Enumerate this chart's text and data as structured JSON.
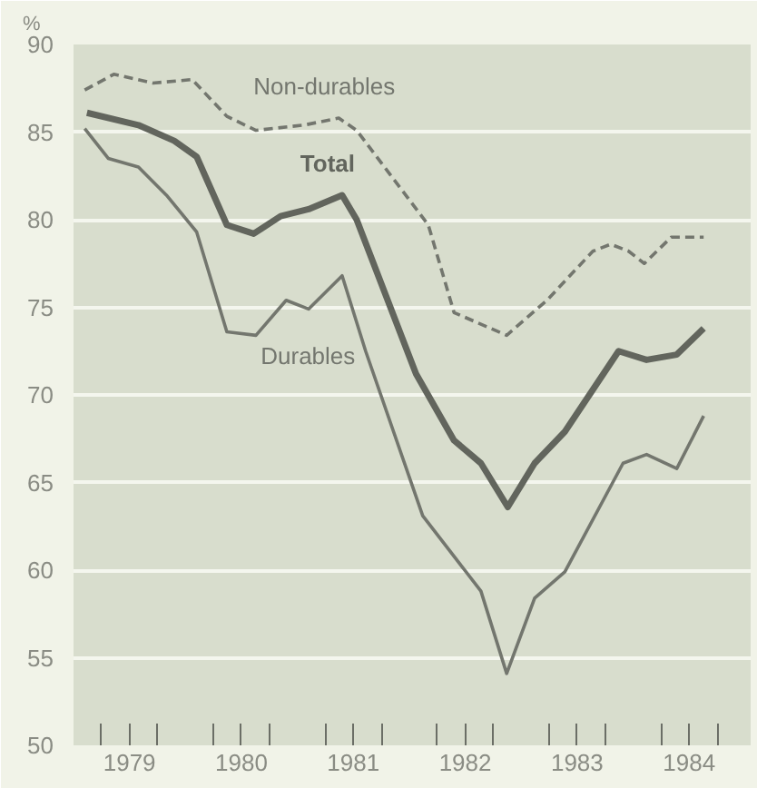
{
  "chart_data": {
    "type": "line",
    "ylabel": "%",
    "xlim": [
      1978.5,
      1984.55
    ],
    "ylim": [
      50,
      90
    ],
    "yticks": [
      50,
      55,
      60,
      65,
      70,
      75,
      80,
      85,
      90
    ],
    "xticks": [
      {
        "value": 1978.75,
        "label": null
      },
      {
        "value": 1979,
        "label": "1979"
      },
      {
        "value": 1979.25,
        "label": null
      },
      {
        "value": 1979.75,
        "label": null
      },
      {
        "value": 1980,
        "label": "1980"
      },
      {
        "value": 1980.25,
        "label": null
      },
      {
        "value": 1980.75,
        "label": null
      },
      {
        "value": 1981,
        "label": "1981"
      },
      {
        "value": 1981.25,
        "label": null
      },
      {
        "value": 1981.75,
        "label": null
      },
      {
        "value": 1982,
        "label": "1982"
      },
      {
        "value": 1982.25,
        "label": null
      },
      {
        "value": 1982.75,
        "label": null
      },
      {
        "value": 1983,
        "label": "1983"
      },
      {
        "value": 1983.25,
        "label": null
      },
      {
        "value": 1983.75,
        "label": null
      },
      {
        "value": 1984,
        "label": "1984"
      },
      {
        "value": 1984.25,
        "label": null
      }
    ],
    "grid": "y",
    "marker": "none",
    "series": [
      {
        "name": "Non-durables",
        "color": "#73766e",
        "line_style": "dashed",
        "x": [
          1978.6,
          1978.86,
          1979.21,
          1979.56,
          1979.87,
          1980.13,
          1980.56,
          1980.87,
          1981.03,
          1981.67,
          1981.9,
          1982.37,
          1982.73,
          1983.14,
          1983.3,
          1983.46,
          1983.6,
          1983.84,
          1984.13
        ],
        "values": [
          87.4,
          88.3,
          87.8,
          88.0,
          85.9,
          85.1,
          85.4,
          85.8,
          85.1,
          79.7,
          74.7,
          73.4,
          75.4,
          78.2,
          78.6,
          78.2,
          77.5,
          79.0,
          79.0
        ]
      },
      {
        "name": "Total",
        "color": "#62655d",
        "line_style": "solid",
        "x": [
          1978.62,
          1979.08,
          1979.4,
          1979.6,
          1979.87,
          1980.11,
          1980.35,
          1980.6,
          1980.9,
          1981.03,
          1981.56,
          1981.9,
          1982.14,
          1982.38,
          1982.62,
          1982.89,
          1983.37,
          1983.62,
          1983.89,
          1984.13
        ],
        "values": [
          86.1,
          85.4,
          84.5,
          83.6,
          79.7,
          79.2,
          80.2,
          80.6,
          81.4,
          80.0,
          71.2,
          67.4,
          66.1,
          63.6,
          66.1,
          67.9,
          72.5,
          72.0,
          72.3,
          73.8
        ]
      },
      {
        "name": "Durables",
        "color": "#73766e",
        "line_style": "solid",
        "x": [
          1978.6,
          1978.81,
          1979.08,
          1979.33,
          1979.6,
          1979.87,
          1980.13,
          1980.4,
          1980.6,
          1980.9,
          1981.11,
          1981.62,
          1982.14,
          1982.37,
          1982.62,
          1982.89,
          1983.41,
          1983.62,
          1983.89,
          1984.13
        ],
        "values": [
          85.2,
          83.5,
          83.0,
          81.4,
          79.3,
          73.6,
          73.4,
          75.4,
          74.9,
          76.8,
          72.5,
          63.1,
          58.8,
          54.1,
          58.4,
          59.9,
          66.1,
          66.6,
          65.8,
          68.8
        ]
      }
    ]
  }
}
